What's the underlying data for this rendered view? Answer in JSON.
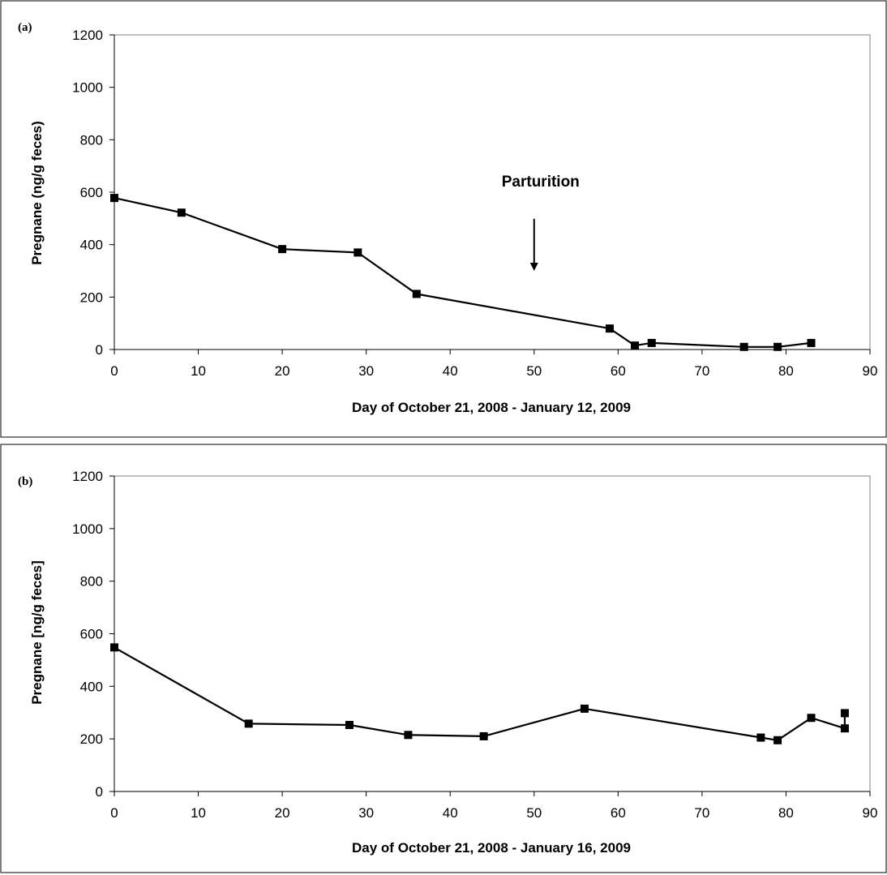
{
  "chart_data": [
    {
      "type": "line",
      "panel_label": "(a)",
      "title": "",
      "xlabel": "Day of October 21, 2008 - January 12, 2009",
      "ylabel": "Pregnane (ng/g feces)",
      "xlim": [
        0,
        90
      ],
      "ylim": [
        0,
        1200
      ],
      "x_ticks": [
        "0",
        "10",
        "20",
        "30",
        "40",
        "50",
        "60",
        "70",
        "80",
        "90"
      ],
      "y_ticks": [
        "0",
        "200",
        "400",
        "600",
        "800",
        "1000",
        "1200"
      ],
      "grid": false,
      "legend": "none",
      "series": [
        {
          "x": [
            0,
            8,
            20,
            29,
            36,
            59,
            62,
            64,
            75,
            79,
            83
          ],
          "y": [
            578,
            522,
            383,
            370,
            212,
            80,
            15,
            25,
            10,
            10,
            25
          ],
          "color": "#000000",
          "marker": "square"
        }
      ],
      "annotations": [
        {
          "text": "Parturition",
          "x": 50,
          "arrow_from_y": 480,
          "arrow_to_y": 300
        }
      ]
    },
    {
      "type": "line",
      "panel_label": "(b)",
      "title": "",
      "xlabel": "Day of October 21, 2008 - January 16, 2009",
      "ylabel": "Pregnane [ng/g feces]",
      "xlim": [
        0,
        90
      ],
      "ylim": [
        0,
        1200
      ],
      "x_ticks": [
        "0",
        "10",
        "20",
        "30",
        "40",
        "50",
        "60",
        "70",
        "80",
        "90"
      ],
      "y_ticks": [
        "0",
        "200",
        "400",
        "600",
        "800",
        "1000",
        "1200"
      ],
      "grid": false,
      "legend": "none",
      "series": [
        {
          "x": [
            0,
            16,
            28,
            35,
            44,
            56,
            77,
            79,
            83,
            87,
            87
          ],
          "y": [
            548,
            258,
            253,
            215,
            210,
            315,
            205,
            195,
            280,
            240,
            298
          ],
          "color": "#000000",
          "marker": "square"
        }
      ],
      "annotations": []
    }
  ]
}
